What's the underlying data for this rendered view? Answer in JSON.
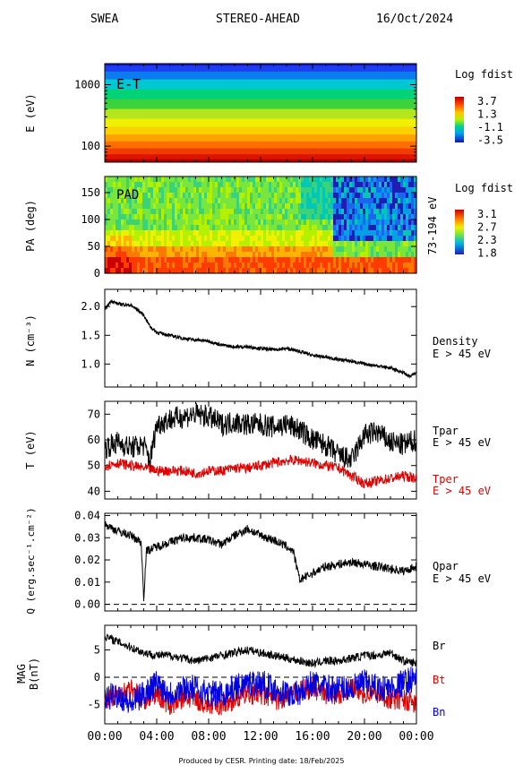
{
  "header": {
    "instrument": "SWEA",
    "spacecraft": "STEREO-AHEAD",
    "date": "16/Oct/2024"
  },
  "footer": "Produced by CESR.  Printing date: 18/Feb/2025",
  "chart_data": [
    {
      "type": "heatmap",
      "panel": "energy-time",
      "tag": "E-T",
      "ylabel": "E (eV)",
      "yscale": "log",
      "yticks": [
        "1000",
        "100"
      ],
      "ylim": [
        55,
        2200
      ],
      "colorbar": {
        "title": "Log fdist",
        "ticks": [
          "3.7",
          "1.3",
          "-1.1",
          "-3.5"
        ]
      },
      "bands": [
        {
          "level": 0.02,
          "color": "#1414c8"
        },
        {
          "level": 0.08,
          "color": "#1e3cf0"
        },
        {
          "level": 0.16,
          "color": "#0a7cf0"
        },
        {
          "level": 0.26,
          "color": "#00c8d2"
        },
        {
          "level": 0.36,
          "color": "#00d278"
        },
        {
          "level": 0.46,
          "color": "#3cd23c"
        },
        {
          "level": 0.56,
          "color": "#b4e61e"
        },
        {
          "level": 0.64,
          "color": "#f0f000"
        },
        {
          "level": 0.72,
          "color": "#fad200"
        },
        {
          "level": 0.79,
          "color": "#ffa000"
        },
        {
          "level": 0.86,
          "color": "#ff6e00"
        },
        {
          "level": 0.92,
          "color": "#f03c00"
        },
        {
          "level": 0.97,
          "color": "#dc1400"
        },
        {
          "level": 1.0,
          "color": "#b40000"
        }
      ]
    },
    {
      "type": "heatmap",
      "panel": "pitch-angle",
      "tag": "PAD",
      "ylabel": "PA (deg)",
      "yticks": [
        "0",
        "50",
        "100",
        "150"
      ],
      "ylim": [
        0,
        180
      ],
      "energy_range_label": "73-194 eV",
      "colorbar": {
        "title": "Log fdist",
        "ticks": [
          "3.1",
          "2.7",
          "2.3",
          "1.8"
        ]
      }
    },
    {
      "type": "line",
      "panel": "density",
      "ylabel": "N (cm⁻³)",
      "series_label": "Density",
      "energy_label": "E > 45 eV",
      "ylim": [
        0.6,
        2.3
      ],
      "yticks": [
        "2.0",
        "1.5",
        "1.0"
      ],
      "x_hours": [
        0,
        0.5,
        1,
        2,
        2.5,
        3,
        3.5,
        4,
        5,
        6,
        7,
        8,
        9,
        10,
        11,
        12,
        13,
        14,
        15,
        16,
        17,
        18,
        19,
        20,
        21,
        22,
        23,
        23.5,
        24
      ],
      "values": [
        1.95,
        2.1,
        2.05,
        2.02,
        1.95,
        1.85,
        1.65,
        1.55,
        1.5,
        1.45,
        1.42,
        1.4,
        1.33,
        1.3,
        1.3,
        1.27,
        1.25,
        1.27,
        1.22,
        1.15,
        1.12,
        1.08,
        1.05,
        1.0,
        0.97,
        0.93,
        0.85,
        0.78,
        0.85
      ]
    },
    {
      "type": "line",
      "panel": "temperature",
      "ylabel": "T (eV)",
      "ylim": [
        37,
        75
      ],
      "yticks": [
        "70",
        "60",
        "50",
        "40"
      ],
      "series": [
        {
          "name": "Tpar",
          "energy_label": "E > 45 eV",
          "color": "#000000",
          "x_hours": [
            0,
            1,
            2,
            3,
            3.5,
            4,
            5,
            6,
            7,
            8,
            9,
            10,
            11,
            12,
            13,
            14,
            15,
            16,
            17,
            18,
            19,
            20,
            21,
            22,
            23,
            24
          ],
          "values": [
            57,
            59,
            57,
            58,
            52,
            66,
            68,
            69,
            70,
            69,
            66,
            67,
            66,
            66,
            65,
            66,
            64,
            60,
            58,
            54,
            52,
            62,
            63,
            59,
            58,
            60
          ]
        },
        {
          "name": "Tper",
          "energy_label": "E > 45 eV",
          "color": "#e00000",
          "x_hours": [
            0,
            1,
            2,
            3,
            4,
            5,
            6,
            7,
            8,
            9,
            10,
            11,
            12,
            13,
            14,
            15,
            16,
            17,
            18,
            19,
            20,
            21,
            22,
            23,
            24
          ],
          "values": [
            50,
            51,
            50,
            49,
            48,
            48,
            48,
            47,
            48,
            48,
            49,
            49,
            50,
            51,
            52,
            52,
            51,
            50,
            49,
            46,
            43,
            44,
            45,
            46,
            45
          ]
        }
      ]
    },
    {
      "type": "line",
      "panel": "heat-flux",
      "ylabel": "Q (erg.sec⁻¹.cm⁻²)",
      "series_label": "Qpar",
      "energy_label": "E > 45 eV",
      "ylim": [
        -0.003,
        0.041
      ],
      "yticks": [
        "0.04",
        "0.03",
        "0.02",
        "0.01",
        "0.00"
      ],
      "x_hours": [
        0,
        1,
        2,
        2.8,
        3.0,
        3.2,
        4,
        5,
        6,
        7,
        8,
        9,
        10,
        11,
        12,
        13,
        14,
        14.5,
        15,
        16,
        17,
        18,
        19,
        20,
        21,
        22,
        23,
        24
      ],
      "values": [
        0.036,
        0.033,
        0.031,
        0.028,
        0.003,
        0.024,
        0.026,
        0.028,
        0.03,
        0.03,
        0.029,
        0.027,
        0.031,
        0.034,
        0.031,
        0.029,
        0.026,
        0.024,
        0.011,
        0.014,
        0.017,
        0.018,
        0.019,
        0.018,
        0.017,
        0.016,
        0.015,
        0.017
      ],
      "zero_line": true
    },
    {
      "type": "line",
      "panel": "magnetic-field",
      "ylabel": "MAG B(nT)",
      "ylim": [
        -8.5,
        9.5
      ],
      "yticks": [
        "5",
        "0",
        "-5"
      ],
      "zero_line": true,
      "series": [
        {
          "name": "Br",
          "color": "#000000",
          "x_hours": [
            0,
            1,
            2,
            3,
            4,
            5,
            6,
            7,
            8,
            9,
            10,
            11,
            12,
            13,
            14,
            15,
            16,
            17,
            18,
            19,
            20,
            21,
            22,
            23,
            24
          ],
          "values": [
            7.5,
            6.5,
            5.5,
            4.5,
            4,
            4,
            3.5,
            3,
            3.5,
            4,
            4.5,
            5,
            4.5,
            4,
            3.5,
            3,
            2.5,
            3,
            3,
            3.5,
            4,
            4,
            4.5,
            3,
            2.5
          ]
        },
        {
          "name": "Bt",
          "color": "#e00000",
          "x_hours": [
            0,
            1,
            2,
            3,
            4,
            5,
            6,
            7,
            8,
            9,
            10,
            11,
            12,
            13,
            14,
            15,
            16,
            17,
            18,
            19,
            20,
            21,
            22,
            23,
            24
          ],
          "values": [
            -4,
            -3,
            -2,
            -4,
            -3,
            -5,
            -4,
            -4,
            -5,
            -5,
            -4,
            -3,
            -3,
            -4,
            -4,
            -2.5,
            -2,
            -3,
            -3,
            -2,
            -3,
            -3,
            -4,
            -4,
            -5
          ]
        },
        {
          "name": "Bn",
          "color": "#0000e0",
          "x_hours": [
            0,
            1,
            2,
            3,
            4,
            5,
            6,
            7,
            8,
            9,
            10,
            11,
            12,
            13,
            14,
            15,
            16,
            17,
            18,
            19,
            20,
            21,
            22,
            23,
            24
          ],
          "values": [
            -4,
            -3,
            -5,
            -3,
            -1,
            -3,
            -2,
            -2,
            -3,
            -3,
            -2,
            -1,
            -1,
            -2,
            -3,
            -3,
            -1,
            -2,
            -2,
            -2,
            -1,
            -2,
            -2,
            -1,
            0
          ]
        }
      ]
    }
  ],
  "x_axis": {
    "ticks": [
      "00:00",
      "04:00",
      "08:00",
      "12:00",
      "16:00",
      "20:00",
      "00:00"
    ],
    "range_hours": [
      0,
      24
    ]
  }
}
